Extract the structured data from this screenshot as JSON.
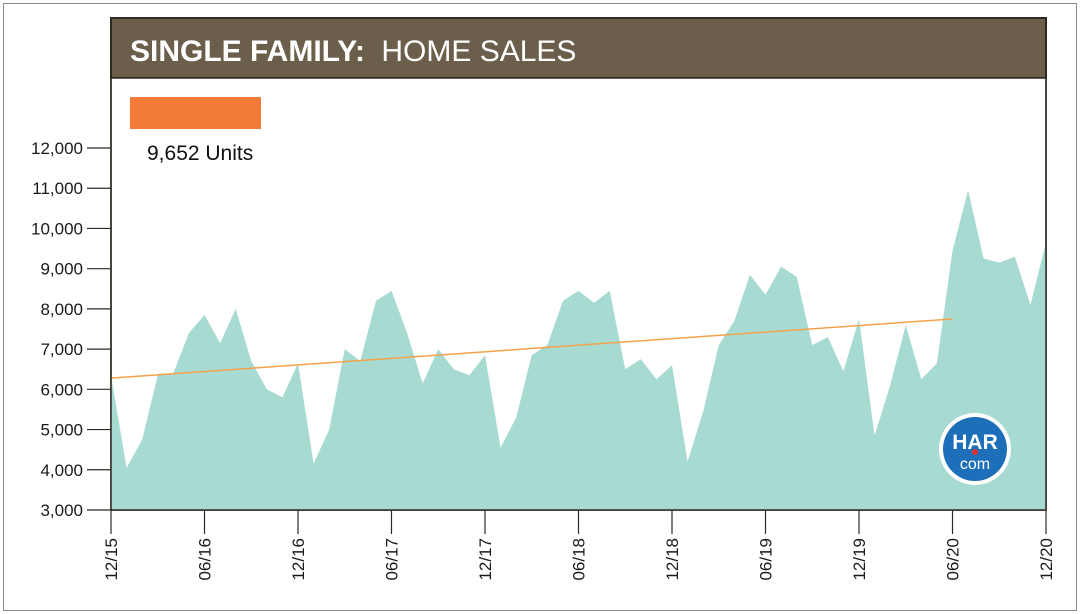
{
  "title": {
    "bold": "SINGLE FAMILY:",
    "rest": "HOME SALES"
  },
  "legend": {
    "label": "9,652 Units",
    "swatch_color": "#f47a3a"
  },
  "logo": {
    "top": "HAR",
    "bottom": "com"
  },
  "colors": {
    "header_bg": "#6b5e4a",
    "area_fill": "#a7dbd2",
    "trend_line": "#f4a24a",
    "logo_bg": "#1e6fba"
  },
  "chart_data": {
    "type": "area",
    "title": "SINGLE FAMILY: HOME SALES",
    "ylim": [
      3000,
      12500
    ],
    "yticks": [
      3000,
      4000,
      5000,
      6000,
      7000,
      8000,
      9000,
      10000,
      11000,
      12000
    ],
    "ytick_labels": [
      "3,000",
      "4,000",
      "5,000",
      "6,000",
      "7,000",
      "8,000",
      "9,000",
      "10,000",
      "11,000",
      "12,000"
    ],
    "xtick_labels": [
      "12/15",
      "06/16",
      "12/16",
      "06/17",
      "12/17",
      "06/18",
      "12/18",
      "06/19",
      "12/19",
      "06/20",
      "12/20"
    ],
    "x": [
      "12/15",
      "01/16",
      "02/16",
      "03/16",
      "04/16",
      "05/16",
      "06/16",
      "07/16",
      "08/16",
      "09/16",
      "10/16",
      "11/16",
      "12/16",
      "01/17",
      "02/17",
      "03/17",
      "04/17",
      "05/17",
      "06/17",
      "07/17",
      "08/17",
      "09/17",
      "10/17",
      "11/17",
      "12/17",
      "01/18",
      "02/18",
      "03/18",
      "04/18",
      "05/18",
      "06/18",
      "07/18",
      "08/18",
      "09/18",
      "10/18",
      "11/18",
      "12/18",
      "01/19",
      "02/19",
      "03/19",
      "04/19",
      "05/19",
      "06/19",
      "07/19",
      "08/19",
      "09/19",
      "10/19",
      "11/19",
      "12/19",
      "01/20",
      "02/20",
      "03/20",
      "04/20",
      "05/20",
      "06/20",
      "07/20",
      "08/20",
      "09/20",
      "10/20",
      "11/20",
      "12/20"
    ],
    "series": [
      {
        "values": [
          6350,
          4050,
          4750,
          6350,
          6400,
          7400,
          7850,
          7150,
          8000,
          6700,
          6000,
          5800,
          6650,
          4150,
          5000,
          7000,
          6700,
          8200,
          8450,
          7400,
          6150,
          7000,
          6500,
          6350,
          6850,
          4550,
          5300,
          6850,
          7100,
          8200,
          8450,
          8150,
          8450,
          6500,
          6750,
          6250,
          6600,
          4200,
          5450,
          7100,
          7700,
          8850,
          8350,
          9050,
          8800,
          7100,
          7300,
          6450,
          7750,
          4850,
          6100,
          7600,
          6250,
          6650,
          9450,
          10950,
          9250,
          9150,
          9300,
          8100,
          9652
        ]
      }
    ],
    "trend": {
      "start": 6280,
      "end": 7750,
      "end_x": "06/20"
    },
    "grid": false,
    "legend_position": "top-left"
  }
}
